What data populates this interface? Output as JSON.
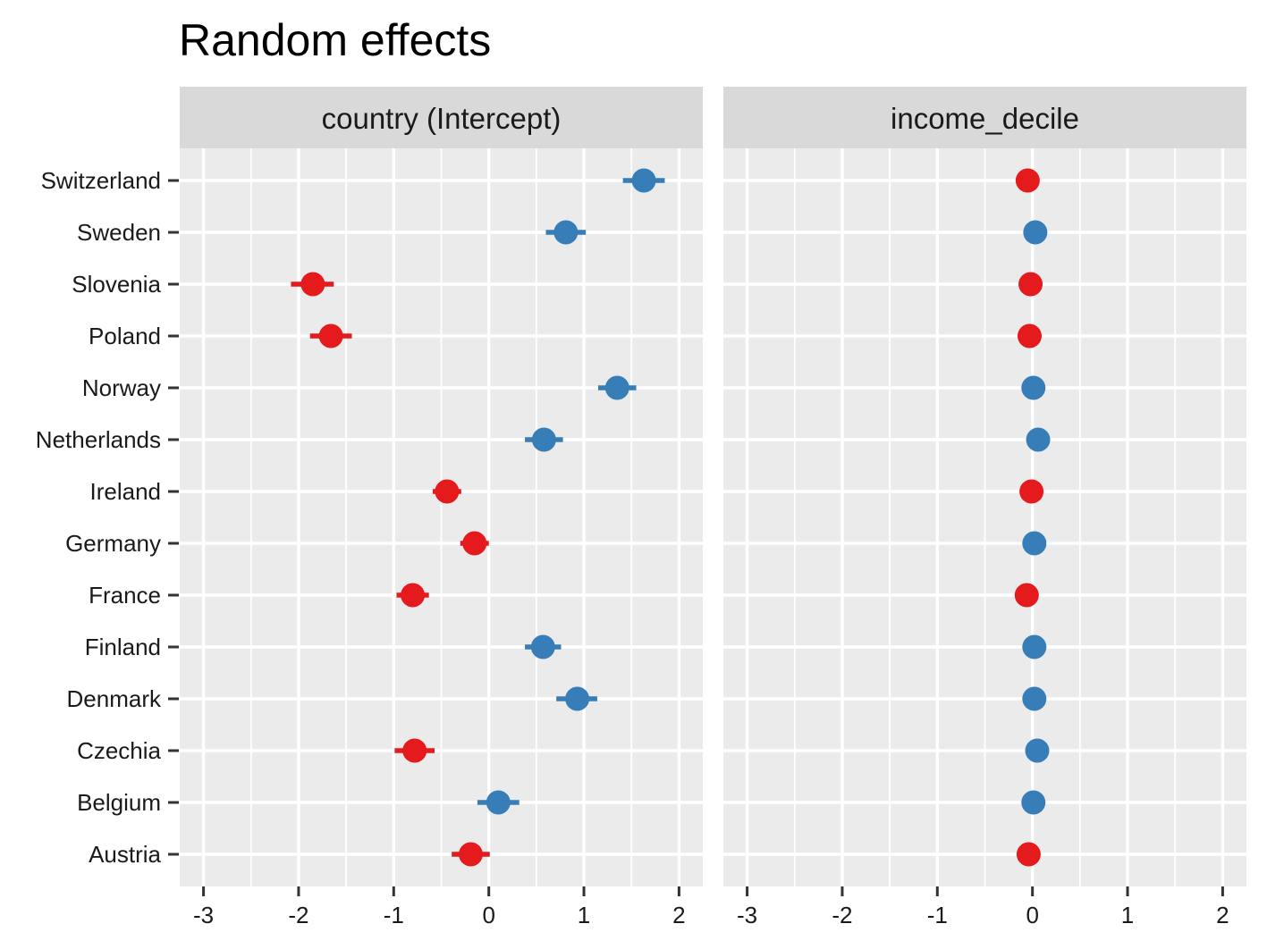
{
  "chart_data": {
    "type": "scatter",
    "title": "Random effects",
    "xlabel": "",
    "ylabel": "",
    "xlim": [
      -3.25,
      2.25
    ],
    "xticks": [
      -3,
      -2,
      -1,
      0,
      1,
      2
    ],
    "categories": [
      "Switzerland",
      "Sweden",
      "Slovenia",
      "Poland",
      "Norway",
      "Netherlands",
      "Ireland",
      "Germany",
      "France",
      "Finland",
      "Denmark",
      "Czechia",
      "Belgium",
      "Austria"
    ],
    "grid": true,
    "legend": "none",
    "colors": {
      "positive": "#377eb8",
      "negative": "#e41a1c"
    },
    "panels": [
      {
        "label": "country (Intercept)",
        "points": [
          {
            "category": "Switzerland",
            "estimate": 1.63,
            "lower": 1.41,
            "upper": 1.85,
            "sign": "positive"
          },
          {
            "category": "Sweden",
            "estimate": 0.81,
            "lower": 0.6,
            "upper": 1.02,
            "sign": "positive"
          },
          {
            "category": "Slovenia",
            "estimate": -1.85,
            "lower": -2.08,
            "upper": -1.63,
            "sign": "negative"
          },
          {
            "category": "Poland",
            "estimate": -1.66,
            "lower": -1.88,
            "upper": -1.44,
            "sign": "negative"
          },
          {
            "category": "Norway",
            "estimate": 1.35,
            "lower": 1.15,
            "upper": 1.55,
            "sign": "positive"
          },
          {
            "category": "Netherlands",
            "estimate": 0.58,
            "lower": 0.38,
            "upper": 0.78,
            "sign": "positive"
          },
          {
            "category": "Ireland",
            "estimate": -0.44,
            "lower": -0.59,
            "upper": -0.29,
            "sign": "negative"
          },
          {
            "category": "Germany",
            "estimate": -0.15,
            "lower": -0.3,
            "upper": 0.0,
            "sign": "negative"
          },
          {
            "category": "France",
            "estimate": -0.8,
            "lower": -0.97,
            "upper": -0.63,
            "sign": "negative"
          },
          {
            "category": "Finland",
            "estimate": 0.57,
            "lower": 0.38,
            "upper": 0.76,
            "sign": "positive"
          },
          {
            "category": "Denmark",
            "estimate": 0.93,
            "lower": 0.71,
            "upper": 1.14,
            "sign": "positive"
          },
          {
            "category": "Czechia",
            "estimate": -0.78,
            "lower": -0.99,
            "upper": -0.57,
            "sign": "negative"
          },
          {
            "category": "Belgium",
            "estimate": 0.1,
            "lower": -0.12,
            "upper": 0.32,
            "sign": "positive"
          },
          {
            "category": "Austria",
            "estimate": -0.19,
            "lower": -0.39,
            "upper": 0.01,
            "sign": "negative"
          }
        ]
      },
      {
        "label": "income_decile",
        "points": [
          {
            "category": "Switzerland",
            "estimate": -0.05,
            "lower": -0.06,
            "upper": -0.04,
            "sign": "negative"
          },
          {
            "category": "Sweden",
            "estimate": 0.03,
            "lower": 0.02,
            "upper": 0.04,
            "sign": "positive"
          },
          {
            "category": "Slovenia",
            "estimate": -0.02,
            "lower": -0.03,
            "upper": -0.01,
            "sign": "negative"
          },
          {
            "category": "Poland",
            "estimate": -0.03,
            "lower": -0.04,
            "upper": -0.02,
            "sign": "negative"
          },
          {
            "category": "Norway",
            "estimate": 0.01,
            "lower": 0.0,
            "upper": 0.02,
            "sign": "positive"
          },
          {
            "category": "Netherlands",
            "estimate": 0.06,
            "lower": 0.05,
            "upper": 0.07,
            "sign": "positive"
          },
          {
            "category": "Ireland",
            "estimate": -0.01,
            "lower": -0.02,
            "upper": 0.0,
            "sign": "negative"
          },
          {
            "category": "Germany",
            "estimate": 0.02,
            "lower": 0.01,
            "upper": 0.03,
            "sign": "positive"
          },
          {
            "category": "France",
            "estimate": -0.06,
            "lower": -0.07,
            "upper": -0.05,
            "sign": "negative"
          },
          {
            "category": "Finland",
            "estimate": 0.02,
            "lower": 0.01,
            "upper": 0.03,
            "sign": "positive"
          },
          {
            "category": "Denmark",
            "estimate": 0.02,
            "lower": 0.01,
            "upper": 0.03,
            "sign": "positive"
          },
          {
            "category": "Czechia",
            "estimate": 0.05,
            "lower": 0.04,
            "upper": 0.06,
            "sign": "positive"
          },
          {
            "category": "Belgium",
            "estimate": 0.01,
            "lower": 0.0,
            "upper": 0.02,
            "sign": "positive"
          },
          {
            "category": "Austria",
            "estimate": -0.04,
            "lower": -0.05,
            "upper": -0.03,
            "sign": "negative"
          }
        ]
      }
    ]
  }
}
